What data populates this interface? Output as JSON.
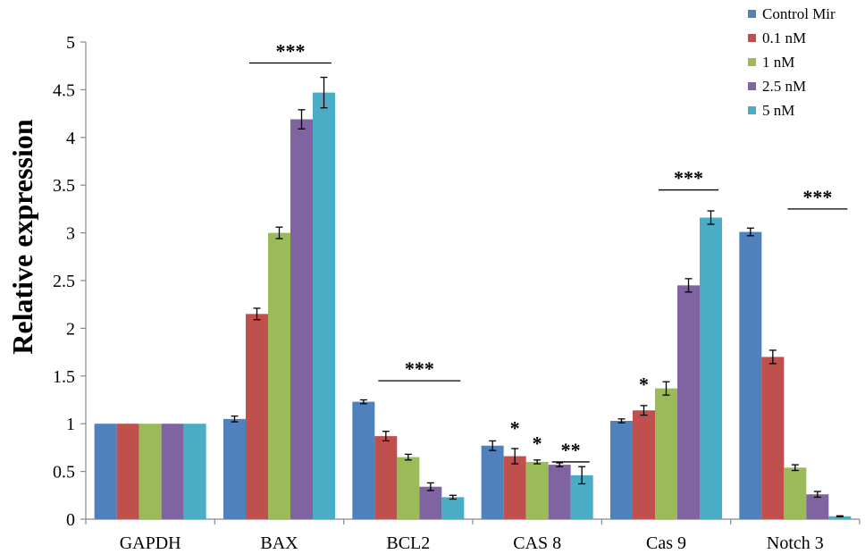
{
  "chart_data": {
    "type": "bar",
    "title": "",
    "xlabel": "",
    "ylabel": "Relative expression",
    "ylim": [
      0,
      5
    ],
    "yticks": [
      "0",
      "0.5",
      "1",
      "1.5",
      "2",
      "2.5",
      "3",
      "3.5",
      "4",
      "4.5",
      "5"
    ],
    "categories": [
      "GAPDH",
      "BAX",
      "BCL2",
      "CAS 8",
      "Cas 9",
      "Notch 3"
    ],
    "series": [
      {
        "name": "Control Mir",
        "color": "#4F81BD",
        "values": [
          1.0,
          1.05,
          1.23,
          0.77,
          1.03,
          3.01
        ],
        "errors": [
          0,
          0.03,
          0.02,
          0.05,
          0.02,
          0.04
        ]
      },
      {
        "name": "0.1 nM",
        "color": "#C0504D",
        "values": [
          1.0,
          2.15,
          0.87,
          0.66,
          1.14,
          1.7
        ],
        "errors": [
          0,
          0.06,
          0.05,
          0.08,
          0.05,
          0.07
        ]
      },
      {
        "name": "1 nM",
        "color": "#9BBB59",
        "values": [
          1.0,
          3.0,
          0.65,
          0.6,
          1.37,
          0.54
        ],
        "errors": [
          0,
          0.06,
          0.03,
          0.02,
          0.07,
          0.03
        ]
      },
      {
        "name": "2.5 nM",
        "color": "#8064A2",
        "values": [
          1.0,
          4.19,
          0.34,
          0.57,
          2.45,
          0.26
        ],
        "errors": [
          0,
          0.1,
          0.04,
          0.02,
          0.07,
          0.03
        ]
      },
      {
        "name": "5 nM",
        "color": "#4BACC6",
        "values": [
          1.0,
          4.47,
          0.23,
          0.46,
          3.16,
          0.03
        ],
        "errors": [
          0,
          0.16,
          0.02,
          0.09,
          0.07,
          0.005
        ]
      }
    ],
    "legend_position": "top-right",
    "significance": [
      {
        "label": "***",
        "category": "BAX",
        "from_series": 1,
        "to_series": 4,
        "y": 4.78,
        "line": true
      },
      {
        "label": "***",
        "category": "BCL2",
        "from_series": 1,
        "to_series": 4,
        "y": 1.45,
        "line": true
      },
      {
        "label": "*",
        "category": "CAS 8",
        "series": 1,
        "y": 0.96,
        "line": false
      },
      {
        "label": "*",
        "category": "CAS 8",
        "series": 2,
        "y": 0.8,
        "line": false
      },
      {
        "label": "**",
        "category": "CAS 8",
        "from_series": 3,
        "to_series": 4,
        "y": 0.6,
        "line": true
      },
      {
        "label": "*",
        "category": "Cas 9",
        "series": 1,
        "y": 1.42,
        "line": false
      },
      {
        "label": "***",
        "category": "Cas 9",
        "from_series": 2,
        "to_series": 4,
        "y": 3.45,
        "line": true
      },
      {
        "label": "***",
        "category": "Notch 3",
        "from_series": 2,
        "to_series": 4,
        "y": 3.25,
        "line": true
      }
    ]
  }
}
